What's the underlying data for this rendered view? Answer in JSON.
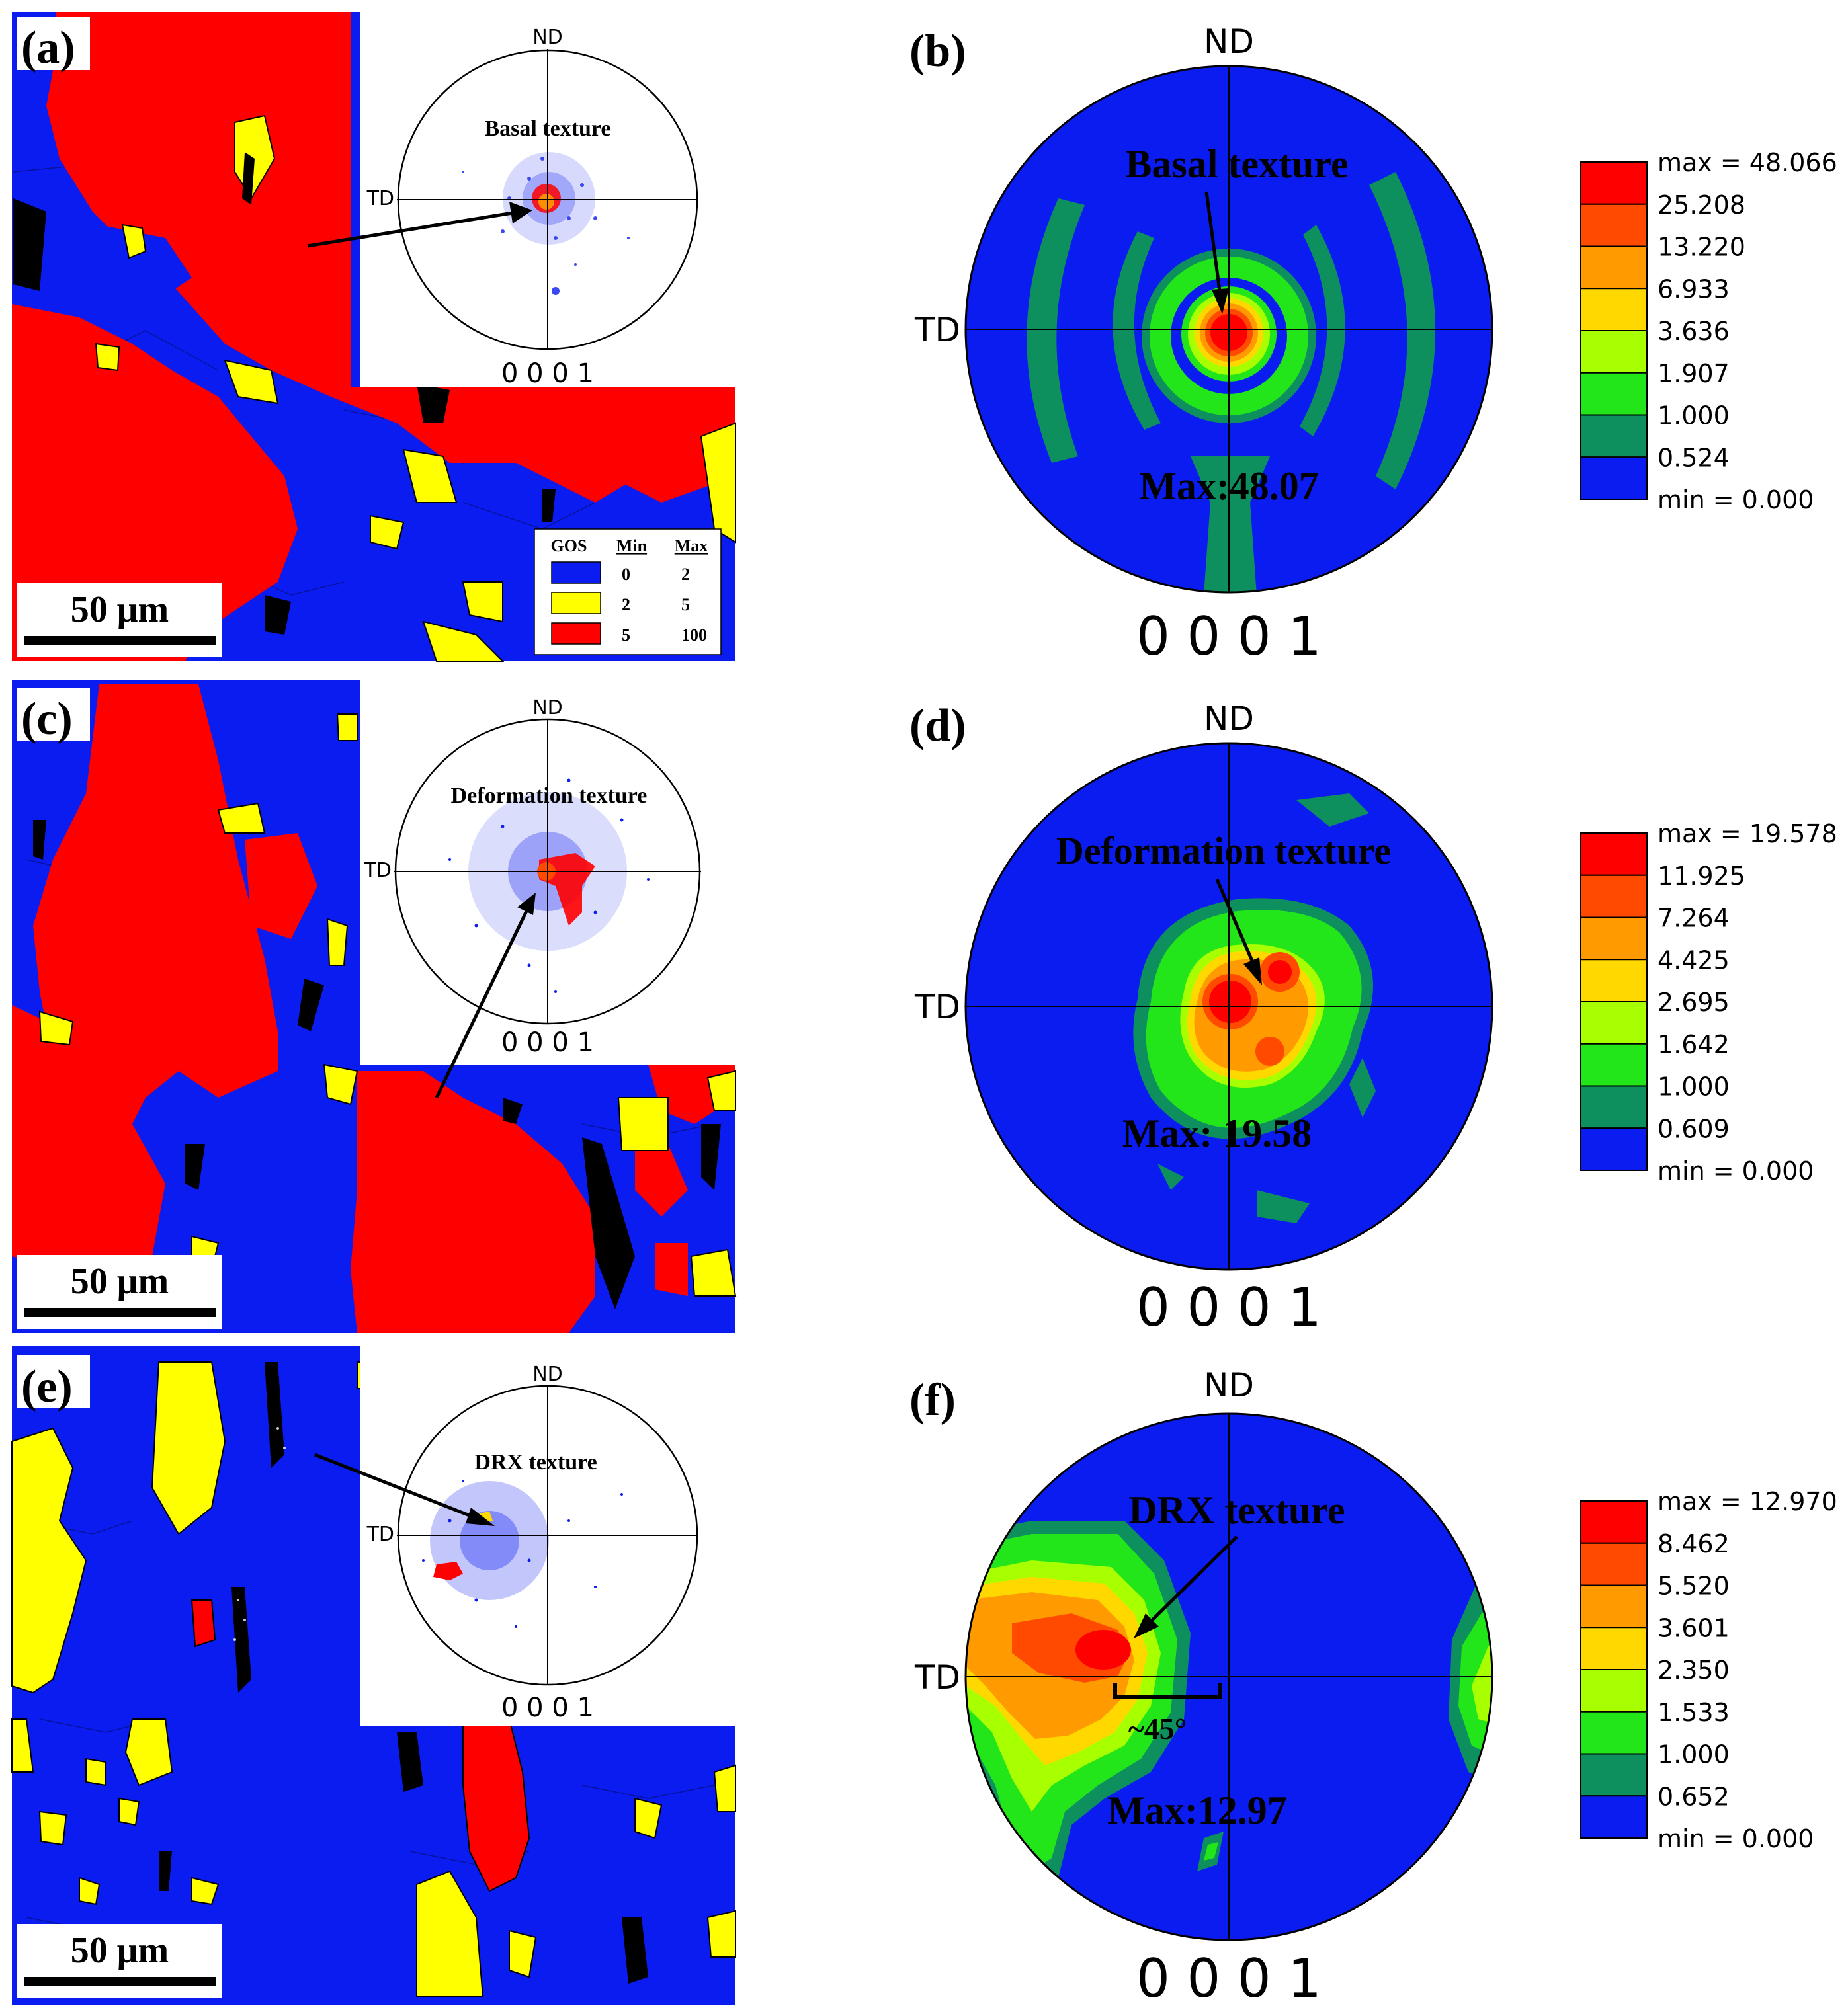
{
  "figure": {
    "panels": {
      "a": {
        "label": "(a)",
        "pf_axis_nd": "ND",
        "pf_axis_td": "TD",
        "pf_plane": "0 0 0 1",
        "texture_label": "Basal texture",
        "scalebar": "50 μm",
        "legend": {
          "title": "GOS",
          "col_min": "Min",
          "col_max": "Max",
          "rows": [
            {
              "color": "#0b1cf0",
              "min": "0",
              "max": "2"
            },
            {
              "color": "#ffff00",
              "min": "2",
              "max": "5"
            },
            {
              "color": "#ff0000",
              "min": "5",
              "max": "100"
            }
          ]
        }
      },
      "b": {
        "label": "(b)",
        "pf_axis_nd": "ND",
        "pf_axis_td": "TD",
        "pf_plane": "0 0 0 1",
        "texture_label": "Basal texture",
        "max_label": "Max:48.07",
        "colorbar": [
          "max = 48.066",
          "25.208",
          "13.220",
          "6.933",
          "3.636",
          "1.907",
          "1.000",
          "0.524",
          "min = 0.000"
        ]
      },
      "c": {
        "label": "(c)",
        "pf_axis_nd": "ND",
        "pf_axis_td": "TD",
        "pf_plane": "0 0 0 1",
        "texture_label": "Deformation texture",
        "scalebar": "50 μm"
      },
      "d": {
        "label": "(d)",
        "pf_axis_nd": "ND",
        "pf_axis_td": "TD",
        "pf_plane": "0 0 0 1",
        "texture_label": "Deformation texture",
        "max_label": "Max: 19.58",
        "colorbar": [
          "max = 19.578",
          "11.925",
          "7.264",
          "4.425",
          "2.695",
          "1.642",
          "1.000",
          "0.609",
          "min = 0.000"
        ]
      },
      "e": {
        "label": "(e)",
        "pf_axis_nd": "ND",
        "pf_axis_td": "TD",
        "pf_plane": "0 0 0 1",
        "texture_label": "DRX texture",
        "scalebar": "50 μm"
      },
      "f": {
        "label": "(f)",
        "pf_axis_nd": "ND",
        "pf_axis_td": "TD",
        "pf_plane": "0 0 0 1",
        "texture_label": "DRX texture",
        "angle_label": "~45°",
        "max_label": "Max:12.97",
        "colorbar": [
          "max = 12.970",
          "8.462",
          "5.520",
          "3.601",
          "2.350",
          "1.533",
          "1.000",
          "0.652",
          "min = 0.000"
        ]
      }
    },
    "colorbar_colors": [
      "#ff0000",
      "#ff4a00",
      "#ff9a00",
      "#ffd800",
      "#a8ff00",
      "#22e61a",
      "#0e8f5e",
      "#0b1cf0"
    ],
    "map_colors": {
      "blue": "#0b1cf0",
      "yellow": "#ffff00",
      "red": "#ff0000",
      "black": "#000000"
    }
  }
}
